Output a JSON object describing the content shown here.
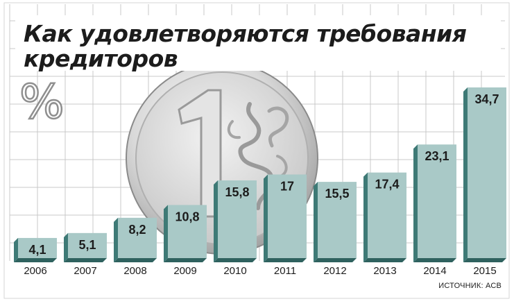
{
  "title_lines": [
    "Как удовлетворяются требования",
    "кредиторов"
  ],
  "source": "ИСТОЧНИК: АСВ",
  "colors": {
    "bar_face": "#a9c9c7",
    "bar_side": "#3e7a76",
    "bar_bottom": "#2f625f",
    "grid": "#c8c8c8",
    "frame": "#d6d6d6",
    "text": "#1c1c1c"
  },
  "chart_data": {
    "type": "bar",
    "title": "Как удовлетворяются требования кредиторов",
    "unit_symbol": "%",
    "categories": [
      "2006",
      "2007",
      "2008",
      "2009",
      "2010",
      "2011",
      "2012",
      "2013",
      "2014",
      "2015"
    ],
    "values": [
      4.1,
      5.1,
      8.2,
      10.8,
      15.8,
      17,
      15.5,
      17.4,
      23.1,
      34.7
    ],
    "value_labels": [
      "4,1",
      "5,1",
      "8,2",
      "10,8",
      "15,8",
      "17",
      "15,5",
      "17,4",
      "23,1",
      "34,7"
    ],
    "ylim": [
      0,
      36
    ],
    "grid": true,
    "background_icon": "one-ruble-coin-icon"
  }
}
